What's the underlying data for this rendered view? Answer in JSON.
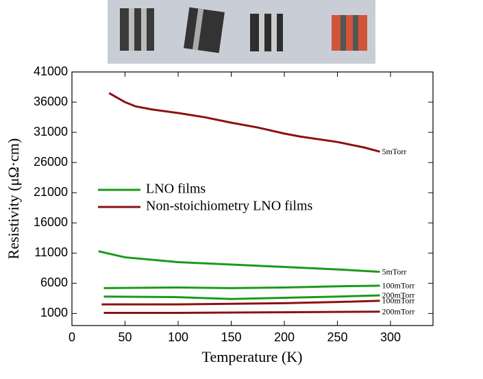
{
  "chart_data": {
    "type": "line",
    "xlabel": "Temperature (K)",
    "ylabel": "Resistivity (μΩ·cm)",
    "xlim": [
      0,
      340
    ],
    "xticks": [
      0,
      50,
      100,
      150,
      200,
      250,
      300
    ],
    "ylim": [
      -1000,
      41000
    ],
    "yticks": [
      1000,
      6000,
      11000,
      16000,
      21000,
      26000,
      31000,
      36000,
      41000
    ],
    "legend": [
      {
        "label": "LNO films",
        "color": "#1a9a1a"
      },
      {
        "label": "Non-stoichiometry LNO films",
        "color": "#8b1010"
      }
    ],
    "series": [
      {
        "name": "5mTorr",
        "color": "#8b1010",
        "x": [
          35,
          50,
          60,
          75,
          100,
          125,
          150,
          175,
          200,
          215,
          250,
          275,
          290
        ],
        "values": [
          37500,
          36000,
          35300,
          34800,
          34200,
          33500,
          32600,
          31800,
          30800,
          30300,
          29400,
          28500,
          27800
        ]
      },
      {
        "name": "5mTorr",
        "color": "#1a9a1a",
        "x": [
          25,
          50,
          100,
          150,
          200,
          250,
          290
        ],
        "values": [
          11300,
          10300,
          9500,
          9100,
          8700,
          8300,
          7900
        ]
      },
      {
        "name": "100mTorr",
        "color": "#1a9a1a",
        "x": [
          30,
          100,
          150,
          200,
          250,
          290
        ],
        "values": [
          5200,
          5300,
          5200,
          5300,
          5500,
          5600
        ]
      },
      {
        "name": "200mTorr",
        "color": "#1a9a1a",
        "x": [
          30,
          100,
          150,
          200,
          250,
          290
        ],
        "values": [
          3800,
          3700,
          3400,
          3600,
          3800,
          4000
        ]
      },
      {
        "name": "100mTorr",
        "color": "#8b1010",
        "x": [
          28,
          100,
          150,
          200,
          250,
          290
        ],
        "values": [
          2500,
          2500,
          2600,
          2700,
          2900,
          3100
        ]
      },
      {
        "name": "200mTorr",
        "color": "#8b1010",
        "x": [
          30,
          100,
          200,
          290
        ],
        "values": [
          1100,
          1100,
          1200,
          1300
        ]
      }
    ]
  }
}
